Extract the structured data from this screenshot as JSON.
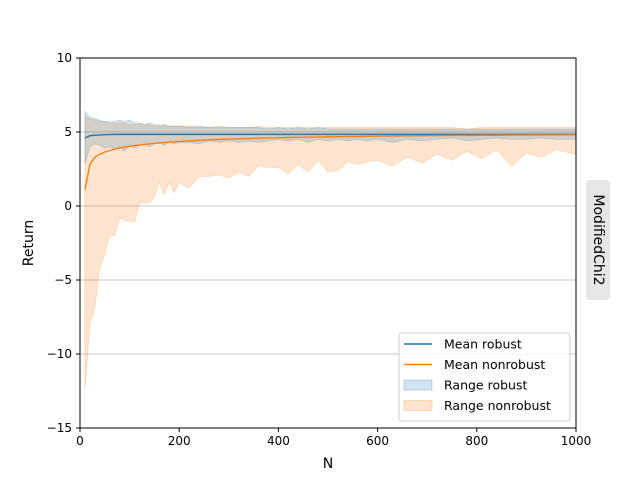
{
  "chart_data": {
    "type": "line",
    "title": "",
    "xlabel": "N",
    "ylabel": "Return",
    "side_label": "ModifiedChi2",
    "xlim": [
      0,
      1000
    ],
    "ylim": [
      -15,
      10
    ],
    "xticks": [
      0,
      200,
      400,
      600,
      800,
      1000
    ],
    "yticks": [
      -15,
      -10,
      -5,
      0,
      5,
      10
    ],
    "grid": "horizontal at y ticks",
    "legend_position": "bottom-right",
    "colors": {
      "robust": "#1f77b4",
      "nonrobust": "#ff7f0e"
    },
    "x": [
      10,
      20,
      30,
      40,
      50,
      60,
      70,
      80,
      90,
      100,
      110,
      120,
      130,
      140,
      150,
      160,
      170,
      180,
      190,
      200,
      220,
      240,
      260,
      280,
      300,
      320,
      340,
      360,
      380,
      400,
      420,
      440,
      460,
      480,
      500,
      520,
      540,
      560,
      580,
      600,
      630,
      660,
      690,
      720,
      750,
      780,
      810,
      840,
      870,
      900,
      930,
      960,
      1000
    ],
    "series": [
      {
        "name": "Mean robust",
        "kind": "line",
        "color": "#1f77b4",
        "values": [
          4.6,
          4.75,
          4.78,
          4.8,
          4.82,
          4.83,
          4.84,
          4.84,
          4.84,
          4.84,
          4.84,
          4.84,
          4.84,
          4.84,
          4.84,
          4.84,
          4.84,
          4.84,
          4.84,
          4.84,
          4.84,
          4.84,
          4.84,
          4.84,
          4.84,
          4.84,
          4.84,
          4.84,
          4.84,
          4.84,
          4.84,
          4.84,
          4.84,
          4.84,
          4.84,
          4.84,
          4.84,
          4.84,
          4.84,
          4.84,
          4.84,
          4.84,
          4.84,
          4.84,
          4.84,
          4.84,
          4.84,
          4.84,
          4.84,
          4.84,
          4.84,
          4.84,
          4.84
        ]
      },
      {
        "name": "Mean nonrobust",
        "kind": "line",
        "color": "#ff7f0e",
        "values": [
          1.1,
          2.8,
          3.3,
          3.5,
          3.65,
          3.75,
          3.85,
          3.92,
          3.98,
          4.03,
          4.08,
          4.12,
          4.16,
          4.2,
          4.23,
          4.26,
          4.29,
          4.32,
          4.34,
          4.36,
          4.4,
          4.44,
          4.47,
          4.5,
          4.52,
          4.54,
          4.56,
          4.58,
          4.6,
          4.61,
          4.63,
          4.64,
          4.65,
          4.66,
          4.67,
          4.68,
          4.69,
          4.7,
          4.71,
          4.72,
          4.73,
          4.74,
          4.75,
          4.76,
          4.77,
          4.77,
          4.78,
          4.78,
          4.79,
          4.79,
          4.8,
          4.8,
          4.81
        ]
      },
      {
        "name": "Range robust",
        "kind": "band",
        "color": "#1f77b4",
        "lower": [
          2.8,
          4.0,
          4.2,
          4.1,
          3.9,
          4.0,
          3.8,
          4.0,
          3.7,
          4.1,
          3.9,
          4.1,
          4.2,
          4.0,
          4.2,
          4.3,
          4.1,
          4.3,
          4.2,
          4.3,
          4.3,
          4.2,
          4.4,
          4.3,
          4.4,
          4.3,
          4.4,
          4.3,
          4.4,
          4.5,
          4.4,
          4.5,
          4.3,
          4.5,
          4.4,
          4.5,
          4.4,
          4.5,
          4.4,
          4.5,
          4.3,
          4.5,
          4.4,
          4.5,
          4.6,
          4.4,
          4.5,
          4.6,
          4.5,
          4.5,
          4.6,
          4.5,
          4.5
        ],
        "upper": [
          6.4,
          6.0,
          5.9,
          5.8,
          5.7,
          5.7,
          5.7,
          5.8,
          5.7,
          5.8,
          5.6,
          5.6,
          5.5,
          5.6,
          5.5,
          5.4,
          5.5,
          5.4,
          5.4,
          5.4,
          5.3,
          5.4,
          5.3,
          5.3,
          5.3,
          5.3,
          5.3,
          5.3,
          5.2,
          5.3,
          5.2,
          5.3,
          5.2,
          5.3,
          5.2,
          5.2,
          5.2,
          5.2,
          5.2,
          5.2,
          5.2,
          5.2,
          5.2,
          5.2,
          5.2,
          5.2,
          5.2,
          5.2,
          5.2,
          5.2,
          5.2,
          5.2,
          5.2
        ]
      },
      {
        "name": "Range nonrobust",
        "kind": "band",
        "color": "#ff7f0e",
        "lower": [
          -12.4,
          -7.9,
          -6.9,
          -4.2,
          -3.2,
          -2.0,
          -2.0,
          -0.8,
          -1.0,
          -1.0,
          -1.1,
          0.2,
          0.2,
          0.2,
          0.6,
          1.6,
          0.8,
          1.6,
          0.9,
          1.6,
          1.2,
          2.0,
          2.0,
          2.1,
          1.9,
          2.3,
          2.0,
          2.7,
          2.6,
          2.6,
          2.2,
          2.8,
          2.3,
          3.1,
          2.3,
          2.4,
          3.0,
          2.8,
          3.0,
          3.1,
          2.7,
          3.3,
          2.9,
          3.5,
          3.1,
          3.7,
          3.2,
          3.8,
          2.7,
          3.6,
          3.3,
          3.8,
          3.5
        ],
        "upper": [
          6.1,
          5.9,
          5.8,
          5.7,
          5.7,
          5.6,
          5.6,
          5.6,
          5.6,
          5.5,
          5.5,
          5.6,
          5.5,
          5.5,
          5.4,
          5.5,
          5.4,
          5.4,
          5.4,
          5.4,
          5.4,
          5.3,
          5.3,
          5.4,
          5.3,
          5.3,
          5.3,
          5.4,
          5.3,
          5.3,
          5.3,
          5.3,
          5.3,
          5.3,
          5.3,
          5.3,
          5.3,
          5.3,
          5.3,
          5.3,
          5.3,
          5.3,
          5.3,
          5.3,
          5.3,
          5.2,
          5.3,
          5.3,
          5.3,
          5.3,
          5.3,
          5.3,
          5.3
        ]
      }
    ]
  }
}
